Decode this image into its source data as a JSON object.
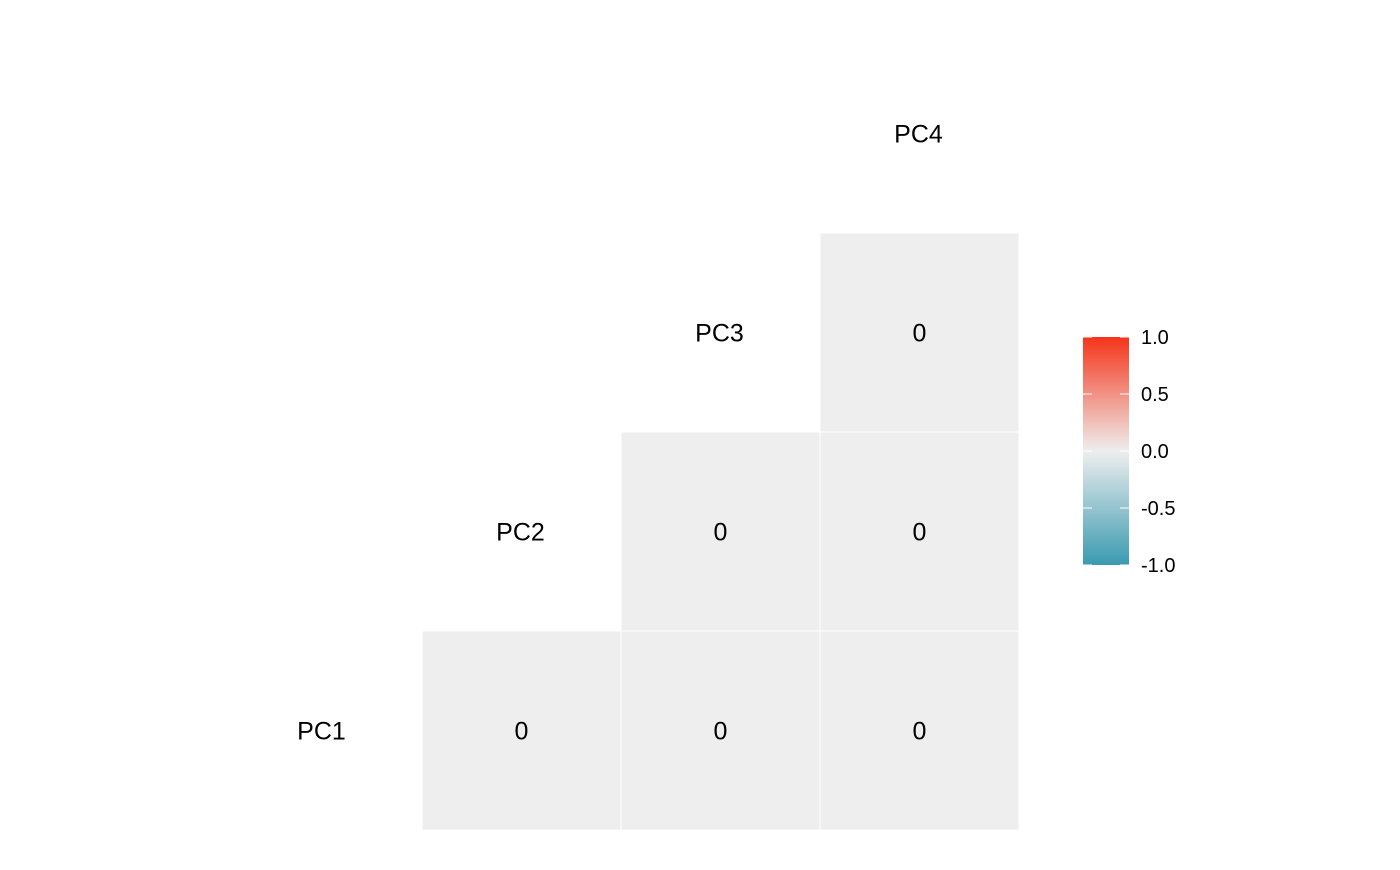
{
  "chart_data": {
    "type": "heatmap",
    "title": "",
    "variables": [
      "PC1",
      "PC2",
      "PC3",
      "PC4"
    ],
    "cells": [
      {
        "row": "PC1",
        "col": "PC2",
        "value": 0,
        "label": "0"
      },
      {
        "row": "PC1",
        "col": "PC3",
        "value": 0,
        "label": "0"
      },
      {
        "row": "PC1",
        "col": "PC4",
        "value": 0,
        "label": "0"
      },
      {
        "row": "PC2",
        "col": "PC3",
        "value": 0,
        "label": "0"
      },
      {
        "row": "PC2",
        "col": "PC4",
        "value": 0,
        "label": "0"
      },
      {
        "row": "PC3",
        "col": "PC4",
        "value": 0,
        "label": "0"
      }
    ],
    "color_scale": {
      "min": -1.0,
      "mid": 0.0,
      "max": 1.0,
      "low_color": "#3a9ab0",
      "mid_color": "#eeeeee",
      "high_color": "#f5341a",
      "ticks": [
        "1.0",
        "0.5",
        "0.0",
        "-0.5",
        "-1.0"
      ],
      "tick_values": [
        1.0,
        0.5,
        0.0,
        -0.5,
        -1.0
      ]
    },
    "legend_position": "right",
    "grid": false
  }
}
